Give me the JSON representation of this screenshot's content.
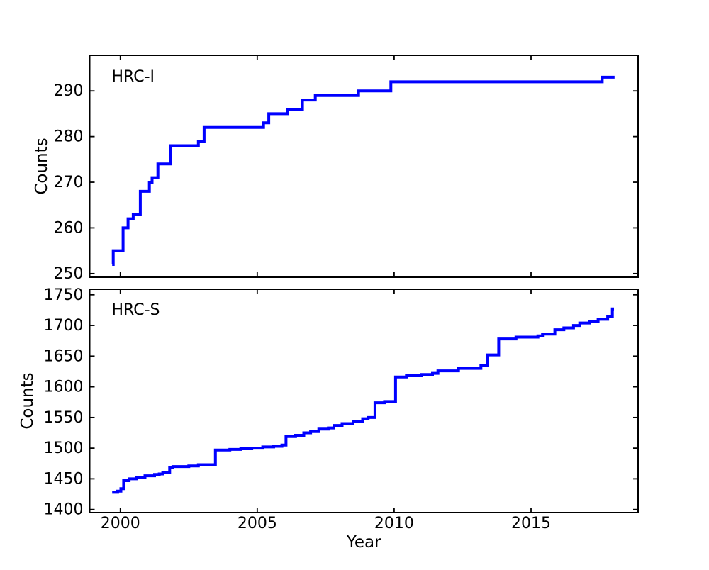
{
  "figure": {
    "background": "#ffffff",
    "axis_color": "#000000"
  },
  "chart_data": [
    {
      "type": "line",
      "panel": "top",
      "annotation": "HRC-I",
      "ylabel": "Counts",
      "xlabel": "",
      "yticks": [
        250,
        260,
        270,
        280,
        290
      ],
      "xticks": [
        2000,
        2005,
        2010,
        2015
      ],
      "show_x_tick_labels": false,
      "xlim": [
        1998.88,
        2018.91
      ],
      "ylim": [
        249.2,
        297.8
      ],
      "grid": false,
      "legend": "none",
      "series": [
        {
          "name": "HRC-I",
          "color": "#0000ff",
          "step": true,
          "points": [
            [
              1999.7,
              252
            ],
            [
              1999.74,
              255
            ],
            [
              2000.1,
              260
            ],
            [
              2000.28,
              262
            ],
            [
              2000.47,
              263
            ],
            [
              2000.73,
              268
            ],
            [
              2001.06,
              270
            ],
            [
              2001.16,
              271
            ],
            [
              2001.37,
              274
            ],
            [
              2001.84,
              278
            ],
            [
              2002.85,
              279
            ],
            [
              2003.06,
              282
            ],
            [
              2005.23,
              283
            ],
            [
              2005.42,
              285
            ],
            [
              2006.11,
              286
            ],
            [
              2006.65,
              288
            ],
            [
              2007.12,
              289
            ],
            [
              2008.7,
              290
            ],
            [
              2009.88,
              292
            ],
            [
              2017.6,
              293
            ],
            [
              2018.05,
              293
            ]
          ]
        }
      ]
    },
    {
      "type": "line",
      "panel": "bottom",
      "annotation": "HRC-S",
      "ylabel": "Counts",
      "xlabel": "Year",
      "yticks": [
        1400,
        1450,
        1500,
        1550,
        1600,
        1650,
        1700,
        1750
      ],
      "xticks": [
        2000,
        2005,
        2010,
        2015
      ],
      "show_x_tick_labels": true,
      "xlim": [
        1998.88,
        2018.91
      ],
      "ylim": [
        1395,
        1759
      ],
      "grid": false,
      "legend": "none",
      "series": [
        {
          "name": "HRC-S",
          "color": "#0000ff",
          "step": true,
          "points": [
            [
              1999.7,
              1428
            ],
            [
              1999.9,
              1430
            ],
            [
              2000.02,
              1434
            ],
            [
              2000.12,
              1447
            ],
            [
              2000.32,
              1450
            ],
            [
              2000.58,
              1452
            ],
            [
              2000.9,
              1455
            ],
            [
              2001.25,
              1457
            ],
            [
              2001.42,
              1458
            ],
            [
              2001.55,
              1460
            ],
            [
              2001.8,
              1468
            ],
            [
              2001.92,
              1470
            ],
            [
              2002.5,
              1471
            ],
            [
              2002.85,
              1473
            ],
            [
              2003.47,
              1497
            ],
            [
              2004.0,
              1498
            ],
            [
              2004.4,
              1499
            ],
            [
              2004.8,
              1500
            ],
            [
              2005.2,
              1502
            ],
            [
              2005.6,
              1503
            ],
            [
              2005.9,
              1505
            ],
            [
              2006.05,
              1519
            ],
            [
              2006.4,
              1521
            ],
            [
              2006.7,
              1525
            ],
            [
              2006.95,
              1527
            ],
            [
              2007.25,
              1531
            ],
            [
              2007.6,
              1533
            ],
            [
              2007.8,
              1537
            ],
            [
              2008.1,
              1540
            ],
            [
              2008.5,
              1544
            ],
            [
              2008.85,
              1548
            ],
            [
              2009.05,
              1550
            ],
            [
              2009.3,
              1574
            ],
            [
              2009.65,
              1576
            ],
            [
              2010.05,
              1616
            ],
            [
              2010.45,
              1618
            ],
            [
              2011.0,
              1620
            ],
            [
              2011.4,
              1622
            ],
            [
              2011.6,
              1626
            ],
            [
              2012.35,
              1630
            ],
            [
              2013.17,
              1635
            ],
            [
              2013.42,
              1652
            ],
            [
              2013.82,
              1678
            ],
            [
              2014.45,
              1681
            ],
            [
              2015.25,
              1683
            ],
            [
              2015.42,
              1686
            ],
            [
              2015.87,
              1693
            ],
            [
              2016.2,
              1696
            ],
            [
              2016.55,
              1700
            ],
            [
              2016.78,
              1704
            ],
            [
              2017.15,
              1707
            ],
            [
              2017.45,
              1710
            ],
            [
              2017.8,
              1715
            ],
            [
              2017.97,
              1727
            ],
            [
              2018.03,
              1727
            ]
          ]
        }
      ]
    }
  ]
}
